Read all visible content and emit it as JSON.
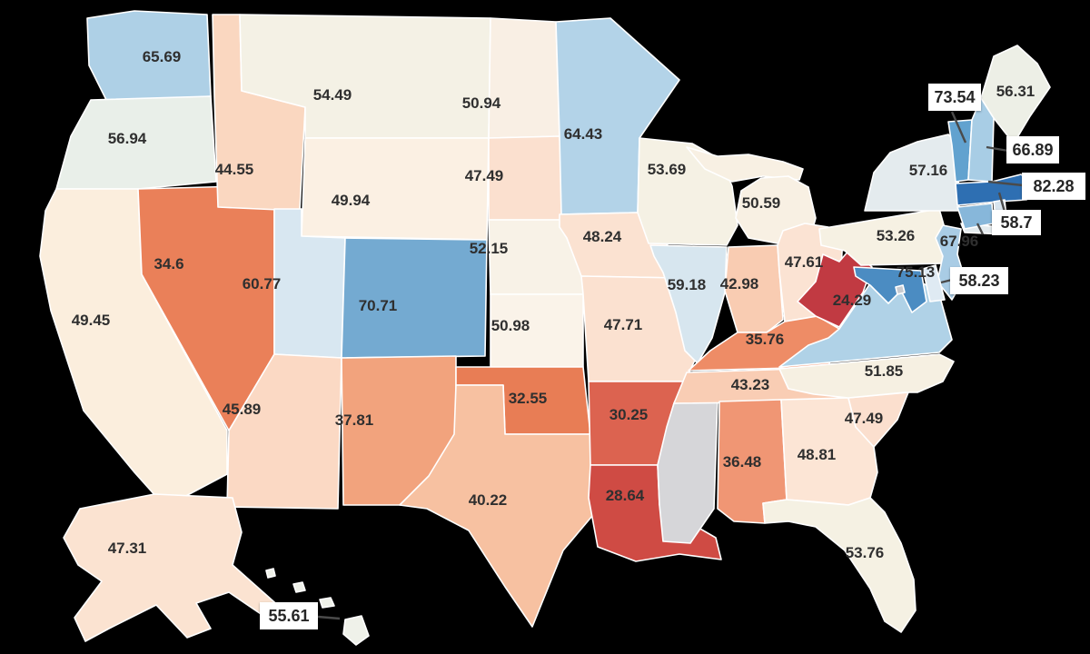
{
  "chart_data": {
    "type": "choropleth_map",
    "title": "",
    "region": "United States (states, Albers-style layout with AK and HI insets)",
    "value_precision": 2,
    "legend": "none visible",
    "background": "#000000",
    "border_color": "#ffffff",
    "no_data_color": "#d6d6d9",
    "color_scale": {
      "type": "diverging",
      "low_color": "#c13a42",
      "mid_color": "#f6f1e4",
      "high_color": "#2e6fb2",
      "domain_min": 24.29,
      "domain_max": 82.28
    },
    "label_text_color_default": "#2f2f2f",
    "states": [
      {
        "id": "WA",
        "name": "Washington",
        "value": 65.69,
        "label": "65.69",
        "fill": "#aed0e6"
      },
      {
        "id": "OR",
        "name": "Oregon",
        "value": 56.94,
        "label": "56.94",
        "fill": "#e9efe9"
      },
      {
        "id": "CA",
        "name": "California",
        "value": 49.45,
        "label": "49.45",
        "fill": "#fbeedd"
      },
      {
        "id": "NV",
        "name": "Nevada",
        "value": 34.6,
        "label": "34.6",
        "fill": "#ea8059"
      },
      {
        "id": "ID",
        "name": "Idaho",
        "value": 44.55,
        "label": "44.55",
        "fill": "#fad7c0"
      },
      {
        "id": "MT",
        "name": "Montana",
        "value": 54.49,
        "label": "54.49",
        "fill": "#f4f1e5"
      },
      {
        "id": "WY",
        "name": "Wyoming",
        "value": 49.94,
        "label": "49.94",
        "fill": "#fbf0e3"
      },
      {
        "id": "UT",
        "name": "Utah",
        "value": 60.77,
        "label": "60.77",
        "fill": "#d8e7f1"
      },
      {
        "id": "CO",
        "name": "Colorado",
        "value": 70.71,
        "label": "70.71",
        "fill": "#74aad1"
      },
      {
        "id": "AZ",
        "name": "Arizona",
        "value": 45.89,
        "label": "45.89",
        "fill": "#fbd9c4"
      },
      {
        "id": "NM",
        "name": "New Mexico",
        "value": 37.81,
        "label": "37.81",
        "fill": "#f2a37d"
      },
      {
        "id": "ND",
        "name": "North Dakota",
        "value": 50.94,
        "label": "50.94",
        "fill": "#f9efe4"
      },
      {
        "id": "SD",
        "name": "South Dakota",
        "value": 47.49,
        "label": "47.49",
        "fill": "#fbe0cf"
      },
      {
        "id": "NE",
        "name": "Nebraska",
        "value": 52.15,
        "label": "52.15",
        "fill": "#f8f2e7"
      },
      {
        "id": "KS",
        "name": "Kansas",
        "value": 50.98,
        "label": "50.98",
        "fill": "#faf3e9"
      },
      {
        "id": "OK",
        "name": "Oklahoma",
        "value": 32.55,
        "label": "32.55",
        "fill": "#e87d55"
      },
      {
        "id": "TX",
        "name": "Texas",
        "value": 40.22,
        "label": "40.22",
        "fill": "#f7c1a1"
      },
      {
        "id": "MN",
        "name": "Minnesota",
        "value": 64.43,
        "label": "64.43",
        "fill": "#b3d3e8"
      },
      {
        "id": "IA",
        "name": "Iowa",
        "value": 48.24,
        "label": "48.24",
        "fill": "#fbe2d1"
      },
      {
        "id": "MO",
        "name": "Missouri",
        "value": 47.71,
        "label": "47.71",
        "fill": "#fbe1d0"
      },
      {
        "id": "AR",
        "name": "Arkansas",
        "value": 30.25,
        "label": "30.25",
        "fill": "#dc6350"
      },
      {
        "id": "LA",
        "name": "Louisiana",
        "value": 28.64,
        "label": "28.64",
        "fill": "#cf4b44",
        "label_color": "#ffffff"
      },
      {
        "id": "WI",
        "name": "Wisconsin",
        "value": 53.69,
        "label": "53.69",
        "fill": "#f5f1e4"
      },
      {
        "id": "IL",
        "name": "Illinois",
        "value": 59.18,
        "label": "59.18",
        "fill": "#d7e6ef"
      },
      {
        "id": "MI",
        "name": "Michigan",
        "value": 50.59,
        "label": "50.59",
        "fill": "#f8f0e3"
      },
      {
        "id": "IN",
        "name": "Indiana",
        "value": 42.98,
        "label": "42.98",
        "fill": "#f9ccb2"
      },
      {
        "id": "OH",
        "name": "Ohio",
        "value": 47.61,
        "label": "47.61",
        "fill": "#fbe3d3"
      },
      {
        "id": "KY",
        "name": "Kentucky",
        "value": 35.76,
        "label": "35.76",
        "fill": "#ee8c66"
      },
      {
        "id": "TN",
        "name": "Tennessee",
        "value": 43.23,
        "label": "43.23",
        "fill": "#f9cdb4"
      },
      {
        "id": "MS",
        "name": "Mississippi",
        "value": null,
        "label": "",
        "fill": "#d6d6d9"
      },
      {
        "id": "AL",
        "name": "Alabama",
        "value": 36.48,
        "label": "36.48",
        "fill": "#f09674"
      },
      {
        "id": "GA",
        "name": "Georgia",
        "value": 48.81,
        "label": "48.81",
        "fill": "#fce5d5"
      },
      {
        "id": "FL",
        "name": "Florida",
        "value": 53.76,
        "label": "53.76",
        "fill": "#f5f1e3"
      },
      {
        "id": "SC",
        "name": "South Carolina",
        "value": 47.49,
        "label": "47.49",
        "fill": "#fbdfce"
      },
      {
        "id": "NC",
        "name": "North Carolina",
        "value": 51.85,
        "label": "51.85",
        "fill": "#f6f0e2"
      },
      {
        "id": "VA",
        "name": "Virginia",
        "value": null,
        "label": "",
        "fill": "#b0d2e7"
      },
      {
        "id": "WV",
        "name": "West Virginia",
        "value": 24.29,
        "label": "24.29",
        "fill": "#c13a42",
        "label_color": "#1c1c1c"
      },
      {
        "id": "PA",
        "name": "Pennsylvania",
        "value": 53.26,
        "label": "53.26",
        "fill": "#f6f1e3"
      },
      {
        "id": "NY",
        "name": "New York",
        "value": 57.16,
        "label": "57.16",
        "fill": "#e4ebee"
      },
      {
        "id": "ME",
        "name": "Maine",
        "value": 56.31,
        "label": "56.31",
        "fill": "#edefe6"
      },
      {
        "id": "VT",
        "name": "Vermont",
        "value": 73.54,
        "label": "73.54",
        "fill": "#62a2cf"
      },
      {
        "id": "NH",
        "name": "New Hampshire",
        "value": 66.89,
        "label": "66.89",
        "fill": "#a8cde5"
      },
      {
        "id": "MA",
        "name": "Massachusetts",
        "value": 82.28,
        "label": "82.28",
        "fill": "#2e6fb2"
      },
      {
        "id": "RI",
        "name": "Rhode Island",
        "value": 58.7,
        "label": "58.7",
        "fill": "#d7e4ee"
      },
      {
        "id": "CT",
        "name": "Connecticut",
        "value": 67.96,
        "label": "67.96",
        "fill": "#87b7da"
      },
      {
        "id": "NJ",
        "name": "New Jersey",
        "value": null,
        "label": "",
        "fill": "#a9cce5"
      },
      {
        "id": "DE",
        "name": "Delaware",
        "value": 58.23,
        "label": "58.23",
        "fill": "#dfeaf3"
      },
      {
        "id": "MD",
        "name": "Maryland",
        "value": 75.13,
        "label": "75.13",
        "fill": "#4b8cc2"
      },
      {
        "id": "DC",
        "name": "District of Columbia",
        "value": null,
        "label": "",
        "fill": "#c9ccd1"
      },
      {
        "id": "AK",
        "name": "Alaska",
        "value": 47.31,
        "label": "47.31",
        "fill": "#fbe3d1"
      },
      {
        "id": "HI",
        "name": "Hawaii",
        "value": 55.61,
        "label": "55.61",
        "fill": "#eff1e9"
      }
    ]
  }
}
